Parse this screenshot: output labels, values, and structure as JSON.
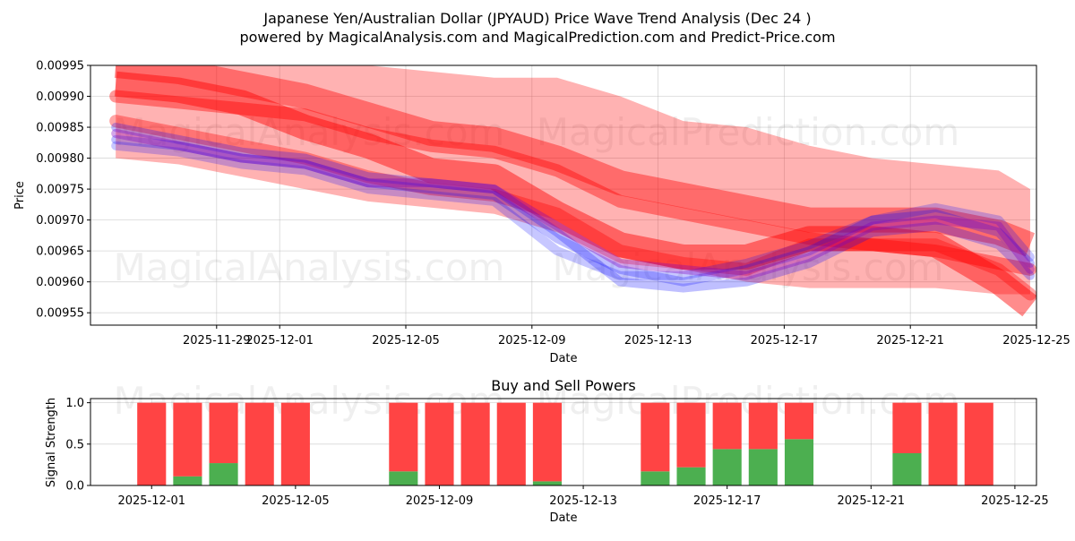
{
  "title_line1": "Japanese Yen/Australian Dollar (JPYAUD) Price Wave Trend Analysis (Dec 24 )",
  "title_line2": "powered by MagicalAnalysis.com and MagicalPrediction.com and Predict-Price.com",
  "watermarks": [
    "MagicalAnalysis.com",
    "MagicalPrediction.com"
  ],
  "colors": {
    "red": "#ff0000",
    "blue": "#0000ff",
    "buy": "#4caf50",
    "sell": "#ff4444"
  },
  "chart_data": [
    {
      "type": "area",
      "title": "",
      "xlabel": "Date",
      "ylabel": "Price",
      "xlim": [
        "2025-11-25",
        "2025-12-25"
      ],
      "ylim": [
        0.00953,
        0.00995
      ],
      "grid": true,
      "x_ticks": [
        "2025-11-29",
        "2025-12-01",
        "2025-12-05",
        "2025-12-09",
        "2025-12-13",
        "2025-12-17",
        "2025-12-21",
        "2025-12-25"
      ],
      "x_tick_days": [
        4,
        6,
        10,
        14,
        18,
        22,
        26,
        30
      ],
      "y_ticks": [
        "0.00955",
        "0.00960",
        "0.00965",
        "0.00970",
        "0.00975",
        "0.00980",
        "0.00985",
        "0.00990",
        "0.00995"
      ],
      "y_tick_values": [
        0.00955,
        0.0096,
        0.00965,
        0.0097,
        0.00975,
        0.0098,
        0.00985,
        0.0099,
        0.00995
      ],
      "x_days": [
        0,
        2,
        4,
        6,
        8,
        10,
        12,
        14,
        16,
        18,
        20,
        22,
        24,
        26,
        28,
        29
      ],
      "bands": [
        {
          "color": "red",
          "opacity": 0.3,
          "upper": [
            0.00999,
            0.00998,
            0.00997,
            0.00996,
            0.00995,
            0.00994,
            0.00993,
            0.00993,
            0.0099,
            0.00986,
            0.00985,
            0.00982,
            0.0098,
            0.00979,
            0.00978,
            0.00975
          ],
          "lower": [
            0.0098,
            0.00979,
            0.00977,
            0.00975,
            0.00973,
            0.00972,
            0.00971,
            0.00968,
            0.00963,
            0.00962,
            0.0096,
            0.00959,
            0.00959,
            0.00959,
            0.00958,
            0.00958
          ]
        },
        {
          "color": "red",
          "opacity": 0.4,
          "upper": [
            0.00995,
            0.00994,
            0.00992,
            0.0099,
            0.00987,
            0.00984,
            0.00983,
            0.0098,
            0.00976,
            0.00974,
            0.00972,
            0.0097,
            0.0097,
            0.0097,
            0.00968,
            0.00966
          ]
        },
        {
          "color": "red",
          "opacity": 0.45,
          "upper": [
            0.00992,
            0.00991,
            0.00989,
            0.00985,
            0.00982,
            0.00978,
            0.00977,
            0.00971,
            0.00966,
            0.00964,
            0.00964,
            0.00967,
            0.00967,
            0.00966,
            0.0096,
            0.00956
          ]
        }
      ],
      "lines": [
        {
          "name": "Red trend 1",
          "color": "red",
          "opacity": 0.4,
          "width": 14,
          "values": [
            0.0099,
            0.00989,
            0.00988,
            0.00987,
            0.00984,
            0.00982,
            0.00981,
            0.00978,
            0.00973,
            0.00971,
            0.00969,
            0.00967,
            0.00966,
            0.00965,
            0.00963,
            0.00962
          ]
        },
        {
          "name": "Red trend 2",
          "color": "red",
          "opacity": 0.35,
          "width": 14,
          "values": [
            0.00986,
            0.00984,
            0.00982,
            0.0098,
            0.00977,
            0.00975,
            0.00974,
            0.00971,
            0.00965,
            0.00963,
            0.00962,
            0.00966,
            0.00966,
            0.00966,
            0.00962,
            0.00958
          ]
        },
        {
          "name": "Blue wave 1",
          "color": "blue",
          "opacity": 0.25,
          "width": 10,
          "values": [
            0.00985,
            0.00983,
            0.00981,
            0.0098,
            0.00977,
            0.00976,
            0.00975,
            0.00968,
            0.0096,
            0.00959,
            0.0096,
            0.00963,
            0.00968,
            0.00969,
            0.00966,
            0.00961
          ]
        },
        {
          "name": "Blue wave 2",
          "color": "blue",
          "opacity": 0.25,
          "width": 10,
          "values": [
            0.00983,
            0.00982,
            0.0098,
            0.00979,
            0.00976,
            0.00975,
            0.00974,
            0.00967,
            0.00962,
            0.0096,
            0.00962,
            0.00965,
            0.0097,
            0.00971,
            0.00968,
            0.00963
          ]
        },
        {
          "name": "Blue wave 3",
          "color": "blue",
          "opacity": 0.22,
          "width": 10,
          "values": [
            0.00982,
            0.00981,
            0.00979,
            0.00978,
            0.00975,
            0.00974,
            0.00973,
            0.00965,
            0.00961,
            0.00961,
            0.00963,
            0.00966,
            0.0097,
            0.00972,
            0.0097,
            0.00964
          ]
        },
        {
          "name": "Purple wave",
          "color": "purple",
          "opacity": 0.35,
          "width": 10,
          "values": [
            0.00984,
            0.00982,
            0.0098,
            0.00979,
            0.00976,
            0.00976,
            0.00975,
            0.00969,
            0.00963,
            0.00962,
            0.00961,
            0.00964,
            0.00969,
            0.0097,
            0.00969,
            0.00962
          ]
        }
      ]
    },
    {
      "type": "bar",
      "title": "Buy and Sell Powers",
      "xlabel": "Date",
      "ylabel": "Signal Strength",
      "xlim": [
        "2025-11-30",
        "2025-12-25"
      ],
      "ylim": [
        0,
        1.05
      ],
      "grid": true,
      "x_ticks": [
        "2025-12-01",
        "2025-12-05",
        "2025-12-09",
        "2025-12-13",
        "2025-12-17",
        "2025-12-21",
        "2025-12-25"
      ],
      "x_tick_days": [
        1,
        5,
        9,
        13,
        17,
        21,
        25
      ],
      "y_ticks": [
        "0.0",
        "0.5",
        "1.0"
      ],
      "y_tick_values": [
        0,
        0.5,
        1.0
      ],
      "bar_days": [
        1,
        2,
        3,
        4,
        5,
        8,
        9,
        10,
        11,
        12,
        15,
        16,
        17,
        18,
        19,
        22,
        23,
        24
      ],
      "series": [
        {
          "name": "Buy",
          "color": "buy",
          "values": [
            0.0,
            0.11,
            0.27,
            0.0,
            0.0,
            0.17,
            0.0,
            0.0,
            0.0,
            0.05,
            0.17,
            0.22,
            0.44,
            0.44,
            0.56,
            0.39,
            0.0,
            0.0
          ]
        },
        {
          "name": "Sell",
          "color": "sell",
          "values": [
            1.0,
            0.89,
            0.73,
            1.0,
            1.0,
            0.83,
            1.0,
            1.0,
            1.0,
            0.95,
            0.83,
            0.78,
            0.56,
            0.56,
            0.44,
            0.61,
            1.0,
            1.0
          ]
        }
      ]
    }
  ]
}
